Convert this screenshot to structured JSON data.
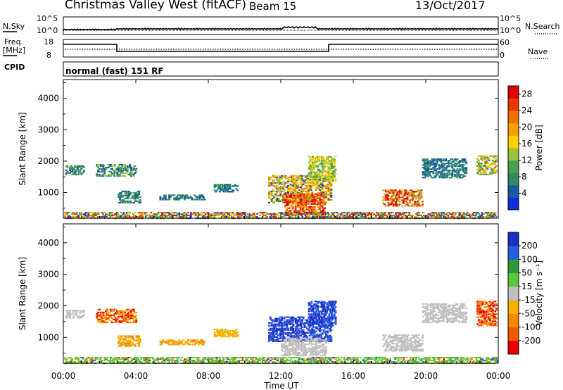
{
  "header": {
    "station": "Christmas Valley West (fitACF)",
    "beam": "Beam 15",
    "date": "13/Oct/2017"
  },
  "top_panels": {
    "nsky_label": "N.Sky",
    "nsky_ticks": [
      "10^5",
      "10^0"
    ],
    "nsearch_label": "N.Search",
    "nsearch_ticks": [
      "10^5",
      "10^0"
    ],
    "freq_label_1": "Freq.",
    "freq_label_2": "[MHz]",
    "freq_ticks": [
      "18",
      "8"
    ],
    "nave_label": "Nave",
    "nave_ticks": [
      "60",
      "0"
    ],
    "cpid_label": "CPID",
    "cpid_value": "normal (fast) 151 RF"
  },
  "chart_data": [
    {
      "type": "heatmap",
      "title": "",
      "ylabel": "Slant Range [km]",
      "xlabel": "",
      "ylim": [
        180,
        4600
      ],
      "yticks": [
        "1000",
        "2000",
        "3000",
        "4000"
      ],
      "x": [
        "00:00",
        "04:00",
        "08:00",
        "12:00",
        "16:00",
        "20:00",
        "00:00"
      ],
      "colorbar": {
        "label": "Power [dB]",
        "ticks": [
          "4",
          "8",
          "12",
          "16",
          "20",
          "24",
          "28"
        ],
        "colors": [
          "#1030e0",
          "#1a5aa0",
          "#2f8a60",
          "#4aa050",
          "#9ac23a",
          "#ffd000",
          "#f5a000",
          "#f07000",
          "#e83a00",
          "#e00000"
        ]
      }
    },
    {
      "type": "heatmap",
      "title": "",
      "ylabel": "Slant Range [km]",
      "xlabel": "Time UT",
      "ylim": [
        180,
        4600
      ],
      "yticks": [
        "1000",
        "2000",
        "3000",
        "4000"
      ],
      "x": [
        "00:00",
        "04:00",
        "08:00",
        "12:00",
        "16:00",
        "20:00",
        "00:00"
      ],
      "colorbar": {
        "label": "Velocity [m s⁻¹]",
        "ticks": [
          "200",
          "100",
          "50",
          "15",
          "-15",
          "-50",
          "-100",
          "-200"
        ],
        "colors": [
          "#1d2fc8",
          "#2a5ee0",
          "#2e9a3a",
          "#5ac83a",
          "#c0c0c0",
          "#f5b000",
          "#f58a00",
          "#f05a00",
          "#e80000"
        ]
      }
    }
  ]
}
